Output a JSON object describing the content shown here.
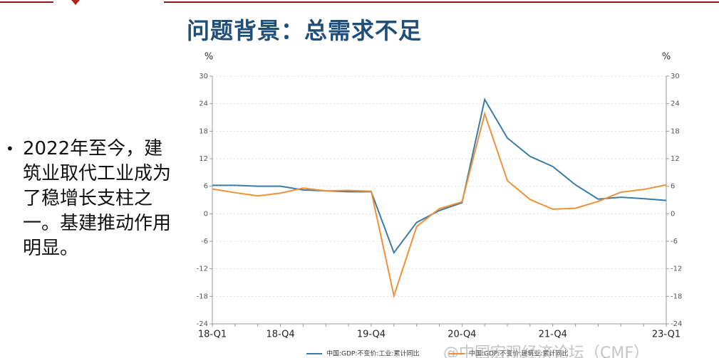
{
  "slide": {
    "title": "问题背景：总需求不足",
    "bullet": "2022年至今，建筑业取代工业成为了稳增长支柱之一。基建推动作用明显。",
    "watermark": "@中国宏观经济论坛（CMF）"
  },
  "chart_data": {
    "type": "line",
    "y_label": "%",
    "y2_label": "%",
    "categories": [
      "18-Q1",
      null,
      null,
      "18-Q4",
      null,
      null,
      null,
      "19-Q4",
      null,
      null,
      null,
      "20-Q4",
      null,
      null,
      null,
      "21-Q4",
      null,
      null,
      null,
      null,
      "23-Q1"
    ],
    "series": [
      {
        "name": "中国:GDP:不变价:工业:累计同比",
        "color": "#3a7ca5",
        "values": [
          6.2,
          6.2,
          6.0,
          6.0,
          5.2,
          5.0,
          4.8,
          4.8,
          -8.5,
          -1.9,
          0.7,
          2.4,
          24.9,
          16.5,
          12.5,
          10.3,
          6.3,
          3.2,
          3.6,
          3.3,
          2.9
        ]
      },
      {
        "name": "中国:GDP:不变价:建筑业:累计同比",
        "color": "#f0913a",
        "values": [
          5.4,
          4.6,
          3.9,
          4.5,
          5.6,
          5.0,
          5.1,
          4.9,
          -17.9,
          -2.8,
          1.1,
          2.6,
          21.8,
          7.2,
          3.1,
          1.0,
          1.2,
          2.7,
          4.7,
          5.3,
          6.3
        ]
      }
    ],
    "ylim": [
      -24,
      30
    ],
    "yticks": [
      -24,
      -18,
      -12,
      -6,
      0,
      6,
      12,
      18,
      24,
      30
    ],
    "y2lim": [
      -24,
      30
    ],
    "y2ticks": [
      -24,
      -18,
      -12,
      -6,
      0,
      6,
      12,
      18,
      24,
      30
    ],
    "grid": true
  }
}
